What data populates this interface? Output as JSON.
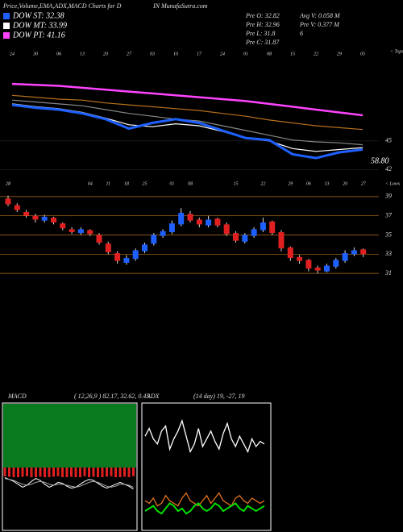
{
  "header": {
    "title_left": "Price,Volume,EMA,ADX,MACD Charts for D",
    "title_right": "IN  MunafaSutra.com"
  },
  "legend": [
    {
      "name": "DOW ST: 32.38",
      "color": "#1e60ff"
    },
    {
      "name": "DOW MT: 33.99",
      "color": "#ffffff"
    },
    {
      "name": "DOW PT: 41.16",
      "color": "#ff44ff"
    }
  ],
  "stats": [
    "Pre  O: 32.82",
    "Avg  V: 0.058 M",
    "Pre  H: 32.96",
    "Pre  V: 0.377 M",
    "Pre  L: 31.8",
    "6",
    "Pre  C: 31.87"
  ],
  "chart_data": [
    {
      "type": "line",
      "corner_label": "< Tops",
      "annotation": "58.80",
      "categories": [
        "24",
        "30",
        "06",
        "13",
        "20",
        "27",
        "03",
        "10",
        "17",
        "24",
        "01",
        "08",
        "15",
        "22",
        "29",
        "05"
      ],
      "ylim": [
        41,
        55
      ],
      "yticks": [
        45,
        42
      ],
      "series": [
        {
          "name": "PT",
          "color": "#ff44ff",
          "values": [
            51.0,
            50.9,
            50.8,
            50.6,
            50.4,
            50.2,
            50.0,
            49.8,
            49.6,
            49.4,
            49.2,
            48.9,
            48.6,
            48.3,
            48.0,
            47.7
          ]
        },
        {
          "name": "LT",
          "color": "#b8701e",
          "values": [
            49.8,
            49.6,
            49.4,
            49.3,
            49.0,
            48.8,
            48.6,
            48.4,
            48.2,
            47.9,
            47.6,
            47.2,
            46.9,
            46.6,
            46.4,
            46.2
          ]
        },
        {
          "name": "MT2",
          "color": "#888888",
          "values": [
            49.3,
            49.1,
            48.9,
            48.7,
            48.3,
            47.9,
            47.6,
            47.3,
            47.1,
            46.6,
            46.1,
            45.6,
            45.1,
            44.9,
            44.8,
            44.6
          ]
        },
        {
          "name": "MT",
          "color": "#ffffff",
          "values": [
            48.9,
            48.6,
            48.4,
            48.0,
            47.4,
            46.7,
            46.5,
            46.8,
            46.6,
            46.0,
            45.3,
            45.0,
            44.2,
            43.9,
            44.1,
            44.3
          ]
        },
        {
          "name": "ST",
          "color": "#1e60ff",
          "values": [
            48.8,
            48.5,
            48.3,
            47.9,
            47.3,
            46.3,
            46.9,
            47.3,
            46.9,
            46.1,
            45.3,
            45.1,
            43.6,
            43.2,
            43.8,
            44.1
          ]
        }
      ]
    },
    {
      "type": "candlestick",
      "corner_label": "< Lows",
      "categories": [
        "28",
        null,
        null,
        null,
        null,
        null,
        null,
        null,
        null,
        "04",
        null,
        "11",
        null,
        "18",
        null,
        "25",
        null,
        null,
        "01",
        null,
        "08",
        null,
        null,
        null,
        null,
        "15",
        null,
        null,
        "22",
        null,
        null,
        "29",
        null,
        "06",
        null,
        "13",
        null,
        "20",
        null,
        "27"
      ],
      "open": [
        38.8,
        38.1,
        37.4,
        37.0,
        36.5,
        36.8,
        36.2,
        35.6,
        35.2,
        35.5,
        35.0,
        34.1,
        33.1,
        32.1,
        32.5,
        33.3,
        34.1,
        34.9,
        35.3,
        36.1,
        37.2,
        36.6,
        36.0,
        36.7,
        36.1,
        35.2,
        34.3,
        34.9,
        35.5,
        36.4,
        35.3,
        33.7,
        32.7,
        32.4,
        31.6,
        31.2,
        31.7,
        32.3,
        33.0,
        33.5
      ],
      "high": [
        39.1,
        38.3,
        37.6,
        37.2,
        37.1,
        36.9,
        36.3,
        35.8,
        35.8,
        35.6,
        35.2,
        34.3,
        33.3,
        32.9,
        33.6,
        34.2,
        35.2,
        35.6,
        36.5,
        37.8,
        37.5,
        36.8,
        37.0,
        36.8,
        36.3,
        35.4,
        35.2,
        35.8,
        36.8,
        36.5,
        35.5,
        33.8,
        32.9,
        32.5,
        31.8,
        32.0,
        32.6,
        33.4,
        33.7,
        33.6
      ],
      "low": [
        38.0,
        37.4,
        36.8,
        36.3,
        36.3,
        36.1,
        35.5,
        35.1,
        35.0,
        34.9,
        34.0,
        33.0,
        32.0,
        31.9,
        32.3,
        33.1,
        33.9,
        34.7,
        35.1,
        35.9,
        36.3,
        35.8,
        35.8,
        35.8,
        34.9,
        34.2,
        34.1,
        34.7,
        35.3,
        35.0,
        33.3,
        32.3,
        32.0,
        31.2,
        31.0,
        31.1,
        31.5,
        32.1,
        32.8,
        32.7
      ],
      "close": [
        38.2,
        37.6,
        37.0,
        36.6,
        36.9,
        36.3,
        35.7,
        35.3,
        35.6,
        35.1,
        34.2,
        33.2,
        32.3,
        32.6,
        33.4,
        34.0,
        35.0,
        35.4,
        36.2,
        37.3,
        36.5,
        36.1,
        36.6,
        36.0,
        35.1,
        34.4,
        35.0,
        35.6,
        36.3,
        35.2,
        33.6,
        32.6,
        32.3,
        31.5,
        31.3,
        31.8,
        32.4,
        33.1,
        33.4,
        33.0
      ],
      "up_color": "#1e60ff",
      "down_color": "#e02020",
      "grid_color": "#b8701e",
      "ylim": [
        30,
        40
      ],
      "yticks": [
        39,
        37,
        35,
        33,
        31
      ]
    },
    {
      "type": "macd",
      "title": "MACD",
      "params": "( 12,26,9 ) 82.17, 32.62, 0.45",
      "histogram": [
        0.9,
        0.95,
        1.0,
        1.0,
        0.95,
        0.9,
        1.0,
        1.0,
        0.95,
        1.0,
        1.0,
        0.95,
        0.9,
        1.0,
        1.0,
        0.95,
        1.0,
        1.0,
        0.9,
        1.0,
        0.95,
        1.0,
        1.0,
        0.95,
        0.9,
        1.0,
        1.0,
        0.95,
        1.0,
        0.9
      ],
      "series": [
        {
          "name": "MACD",
          "color": "#ffffff",
          "values": [
            -0.2,
            -0.4,
            -0.6,
            -0.9,
            -1.2,
            -1.0,
            -0.6,
            -0.3,
            -0.5,
            -0.9,
            -1.2,
            -1.0,
            -0.7,
            -0.8,
            -1.1,
            -1.3,
            -1.2,
            -0.9,
            -0.6,
            -0.4,
            -0.5,
            -0.8,
            -1.1,
            -1.3,
            -1.1,
            -0.9,
            -0.7,
            -0.9,
            -1.1,
            -1.4
          ]
        },
        {
          "name": "Signal",
          "color": "#aaaaaa",
          "values": [
            -0.3,
            -0.4,
            -0.5,
            -0.7,
            -0.9,
            -1.0,
            -0.9,
            -0.7,
            -0.6,
            -0.7,
            -0.9,
            -1.0,
            -0.9,
            -0.9,
            -1.0,
            -1.1,
            -1.2,
            -1.1,
            -0.9,
            -0.7,
            -0.6,
            -0.7,
            -0.9,
            -1.1,
            -1.2,
            -1.1,
            -0.9,
            -0.9,
            -1.0,
            -1.2
          ]
        }
      ]
    },
    {
      "type": "line",
      "title": "ADX",
      "params": "(14  day) 19,  -27,  19",
      "series": [
        {
          "name": "DI",
          "color": "#ffffff",
          "values": [
            34,
            37,
            33,
            31,
            36,
            38,
            29,
            33,
            36,
            40,
            34,
            28,
            31,
            37,
            30,
            33,
            36,
            32,
            29,
            35,
            39,
            33,
            30,
            34,
            31,
            28,
            33,
            30,
            32,
            31
          ]
        },
        {
          "name": "ADX",
          "color": "#e07020",
          "values": [
            9,
            8,
            10,
            7,
            8,
            11,
            9,
            8,
            7,
            10,
            12,
            9,
            8,
            7,
            9,
            11,
            8,
            10,
            12,
            9,
            8,
            7,
            10,
            11,
            9,
            8,
            10,
            9,
            8,
            9
          ]
        },
        {
          "name": "DI-",
          "color": "#00e000",
          "values": [
            5,
            6,
            7,
            5,
            4,
            6,
            8,
            7,
            5,
            6,
            4,
            5,
            7,
            8,
            6,
            5,
            6,
            8,
            7,
            5,
            6,
            7,
            8,
            6,
            5,
            7,
            6,
            5,
            6,
            7
          ]
        }
      ]
    }
  ]
}
